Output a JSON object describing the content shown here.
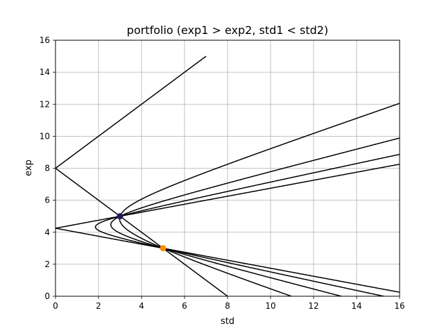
{
  "chart_data": {
    "type": "line",
    "title": "portfolio (exp1 > exp2, std1 < std2)",
    "xlabel": "std",
    "ylabel": "exp",
    "xlim": [
      0,
      16
    ],
    "ylim": [
      0,
      16
    ],
    "xticks": [
      0,
      2,
      4,
      6,
      8,
      10,
      12,
      14,
      16
    ],
    "yticks": [
      0,
      2,
      4,
      6,
      8,
      10,
      12,
      14,
      16
    ],
    "grid": true,
    "line_color": "#000000",
    "assets": [
      {
        "std": 3,
        "exp": 5,
        "color": "#1a1a5e"
      },
      {
        "std": 5,
        "exp": 3,
        "color": "#ff8c00"
      }
    ],
    "correlations": [
      -1,
      -0.5,
      0,
      0.5,
      1
    ],
    "weight_range": [
      -3,
      6
    ]
  }
}
